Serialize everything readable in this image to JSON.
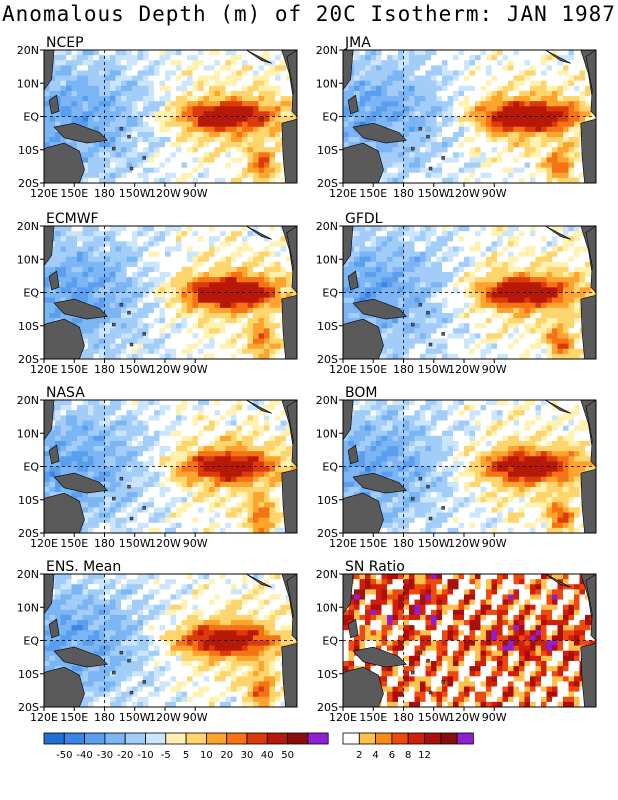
{
  "title": "Anomalous Depth (m) of 20C Isotherm: JAN 1987",
  "lat_labels": [
    "20N",
    "10N",
    "EQ",
    "10S",
    "20S"
  ],
  "lon_labels": [
    "120E",
    "150E",
    "180",
    "150W",
    "120W",
    "90W"
  ],
  "colors": {
    "anomaly": [
      "#1e6fd6",
      "#3a86e6",
      "#5a9fef",
      "#7bb5f4",
      "#a1cdf8",
      "#cbe6fc",
      "#ffffff",
      "#fff1b0",
      "#fed56d",
      "#fca42e",
      "#f57315",
      "#db3a0b",
      "#b81808",
      "#8a0d0d",
      "#8e1fd2"
    ],
    "snr": [
      "#ffffff",
      "#fcc24c",
      "#f98b16",
      "#ee4a0c",
      "#d21f0a",
      "#ac0e0e",
      "#8a0d0d",
      "#8e1fd2"
    ],
    "land": "#5a5a5a"
  },
  "chart_data": [
    {
      "type": "heatmap",
      "panel": "NCEP",
      "title": "NCEP",
      "y_ticks": [
        "20N",
        "10N",
        "EQ",
        "10S",
        "20S"
      ],
      "x_ticks": [
        "120E",
        "150E",
        "180",
        "150W",
        "120W",
        "90W"
      ],
      "color_scale": "anomaly",
      "core_max_m": 50,
      "core_center": "120W on EQ"
    },
    {
      "type": "heatmap",
      "panel": "JMA",
      "title": "JMA",
      "y_ticks": [
        "20N",
        "10N",
        "EQ",
        "10S",
        "20S"
      ],
      "x_ticks": [
        "120E",
        "150E",
        "180",
        "150W",
        "120W",
        "90W"
      ],
      "color_scale": "anomaly",
      "core_max_m": 60,
      "core_center": "120W on EQ"
    },
    {
      "type": "heatmap",
      "panel": "ECMWF",
      "title": "ECMWF",
      "y_ticks": [
        "20N",
        "10N",
        "EQ",
        "10S",
        "20S"
      ],
      "x_ticks": [
        "120E",
        "150E",
        "180",
        "150W",
        "120W",
        "90W"
      ],
      "color_scale": "anomaly",
      "core_max_m": 60,
      "core_center": "120W on EQ"
    },
    {
      "type": "heatmap",
      "panel": "GFDL",
      "title": "GFDL",
      "y_ticks": [
        "20N",
        "10N",
        "EQ",
        "10S",
        "20S"
      ],
      "x_ticks": [
        "120E",
        "150E",
        "180",
        "150W",
        "120W",
        "90W"
      ],
      "color_scale": "anomaly",
      "core_max_m": 50,
      "core_center": "120W on EQ"
    },
    {
      "type": "heatmap",
      "panel": "NASA",
      "title": "NASA",
      "y_ticks": [
        "20N",
        "10N",
        "EQ",
        "10S",
        "20S"
      ],
      "x_ticks": [
        "120E",
        "150E",
        "180",
        "150W",
        "120W",
        "90W"
      ],
      "color_scale": "anomaly",
      "core_max_m": 50,
      "core_center": "120W on EQ"
    },
    {
      "type": "heatmap",
      "panel": "BOM",
      "title": "BOM",
      "y_ticks": [
        "20N",
        "10N",
        "EQ",
        "10S",
        "20S"
      ],
      "x_ticks": [
        "120E",
        "150E",
        "180",
        "150W",
        "120W",
        "90W"
      ],
      "color_scale": "anomaly",
      "core_max_m": 50,
      "core_center": "120W on EQ"
    },
    {
      "type": "heatmap",
      "panel": "ENS. Mean",
      "title": "ENS. Mean",
      "y_ticks": [
        "20N",
        "10N",
        "EQ",
        "10S",
        "20S"
      ],
      "x_ticks": [
        "120E",
        "150E",
        "180",
        "150W",
        "120W",
        "90W"
      ],
      "color_scale": "anomaly",
      "core_max_m": 50,
      "core_center": "120W on EQ"
    },
    {
      "type": "heatmap",
      "panel": "SN Ratio",
      "title": "SN Ratio",
      "y_ticks": [
        "20N",
        "10N",
        "EQ",
        "10S",
        "20S"
      ],
      "x_ticks": [
        "120E",
        "150E",
        "180",
        "150W",
        "120W",
        "90W"
      ],
      "color_scale": "snr"
    }
  ],
  "colorbars": {
    "anomaly": {
      "labels": [
        "-50",
        "-40",
        "-30",
        "-20",
        "-10",
        "-5",
        "5",
        "10",
        "20",
        "30",
        "40",
        "50"
      ]
    },
    "snr": {
      "labels": [
        "2",
        "4",
        "6",
        "8",
        "12"
      ]
    }
  }
}
